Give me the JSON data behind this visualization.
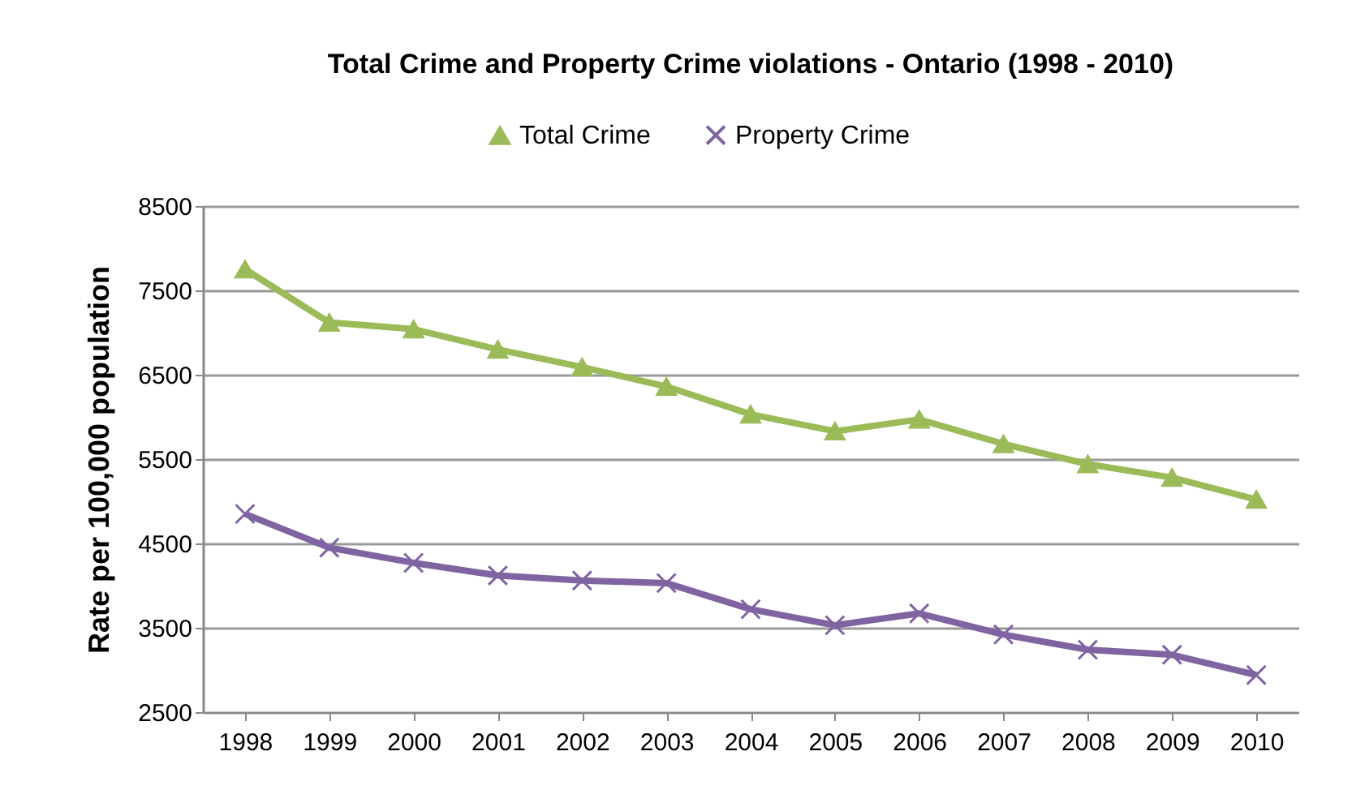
{
  "chart_data": {
    "type": "line",
    "title": "Total Crime and Property Crime violations - Ontario (1998 - 2010)",
    "ylabel": "Rate per 100,000 population",
    "categories": [
      "1998",
      "1999",
      "2000",
      "2001",
      "2002",
      "2003",
      "2004",
      "2005",
      "2006",
      "2007",
      "2008",
      "2009",
      "2010"
    ],
    "series": [
      {
        "name": "Total Crime",
        "color": "#9bbb59",
        "marker": "triangle",
        "values": [
          7750,
          7120,
          7040,
          6800,
          6590,
          6360,
          6030,
          5830,
          5970,
          5680,
          5440,
          5280,
          5020
        ]
      },
      {
        "name": "Property Crime",
        "color": "#8064a2",
        "marker": "cross",
        "values": [
          4850,
          4450,
          4270,
          4120,
          4060,
          4030,
          3720,
          3530,
          3670,
          3420,
          3240,
          3180,
          2940
        ]
      }
    ],
    "ylim": [
      2500,
      8500
    ],
    "yticks": [
      2500,
      3500,
      4500,
      5500,
      6500,
      7500,
      8500
    ],
    "grid": "y",
    "legend": "top"
  }
}
